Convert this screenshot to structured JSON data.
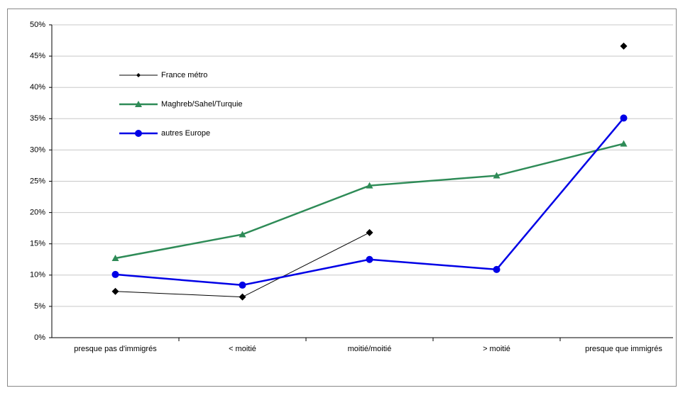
{
  "chart_data": {
    "type": "line",
    "categories": [
      "presque pas d'immigrés",
      "< moitié",
      "moitié/moitié",
      "> moitié",
      "presque que immigrés"
    ],
    "series": [
      {
        "name": "France métro",
        "color": "#000000",
        "marker": "diamond",
        "values": [
          7.4,
          6.5,
          16.8,
          null,
          46.6
        ]
      },
      {
        "name": "Maghreb/Sahel/Turquie",
        "color": "#2e8b57",
        "marker": "triangle",
        "values": [
          12.7,
          16.5,
          24.3,
          25.9,
          31.0
        ]
      },
      {
        "name": "autres Europe",
        "color": "#0000e6",
        "marker": "circle",
        "values": [
          10.1,
          8.4,
          12.5,
          10.9,
          35.1
        ]
      }
    ],
    "ylim": [
      0,
      50
    ],
    "yticks": [
      {
        "value": 0,
        "label": "0%"
      },
      {
        "value": 5,
        "label": "5%"
      },
      {
        "value": 10,
        "label": "10%"
      },
      {
        "value": 15,
        "label": "15%"
      },
      {
        "value": 20,
        "label": "20%"
      },
      {
        "value": 25,
        "label": "25%"
      },
      {
        "value": 30,
        "label": "30%"
      },
      {
        "value": 35,
        "label": "35%"
      },
      {
        "value": 40,
        "label": "40%"
      },
      {
        "value": 45,
        "label": "45%"
      },
      {
        "value": 50,
        "label": "50%"
      }
    ],
    "grid": true
  }
}
